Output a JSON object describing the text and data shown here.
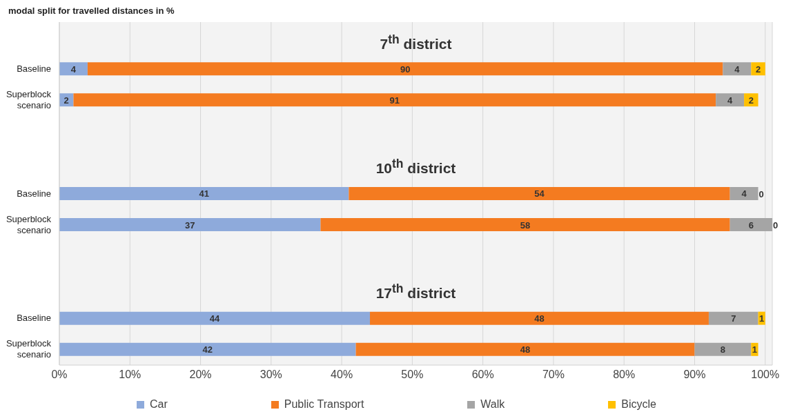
{
  "chart_data": {
    "type": "bar",
    "orientation": "horizontal",
    "stacked": true,
    "title": "modal split for travelled distances in %",
    "categories": [
      null,
      "Baseline",
      "Superblock scenario",
      null,
      null,
      "Baseline",
      "Superblock scenario",
      null,
      null,
      "Baseline",
      "Superblock scenario"
    ],
    "series": [
      {
        "name": "Car",
        "color": "#8eaadb",
        "values": [
          null,
          4,
          2,
          null,
          null,
          41,
          37,
          null,
          null,
          44,
          42
        ]
      },
      {
        "name": "Public Transport",
        "color": "#f47b20",
        "values": [
          null,
          90,
          91,
          null,
          null,
          54,
          58,
          null,
          null,
          48,
          48
        ]
      },
      {
        "name": "Walk",
        "color": "#a5a5a5",
        "values": [
          null,
          4,
          4,
          null,
          null,
          4,
          6,
          null,
          null,
          7,
          8
        ]
      },
      {
        "name": "Bicycle",
        "color": "#ffc000",
        "values": [
          null,
          2,
          2,
          null,
          null,
          0,
          0,
          null,
          null,
          1,
          1
        ]
      }
    ],
    "annotations": [
      "7$^{th}$ district",
      "10$^{th}$ district",
      "17$^{th}$ district"
    ],
    "xlim": [
      0,
      101
    ],
    "xticks": [
      {
        "value": 0,
        "label": "0%"
      },
      {
        "value": 10,
        "label": "10%"
      },
      {
        "value": 20,
        "label": "20%"
      },
      {
        "value": 30,
        "label": "30%"
      },
      {
        "value": 40,
        "label": "40%"
      },
      {
        "value": 50,
        "label": "50%"
      },
      {
        "value": 60,
        "label": "60%"
      },
      {
        "value": 70,
        "label": "70%"
      },
      {
        "value": 80,
        "label": "80%"
      },
      {
        "value": 90,
        "label": "90%"
      },
      {
        "value": 100,
        "label": "100%"
      }
    ],
    "grid": "x",
    "legend": "bottom",
    "data_labels": true
  }
}
